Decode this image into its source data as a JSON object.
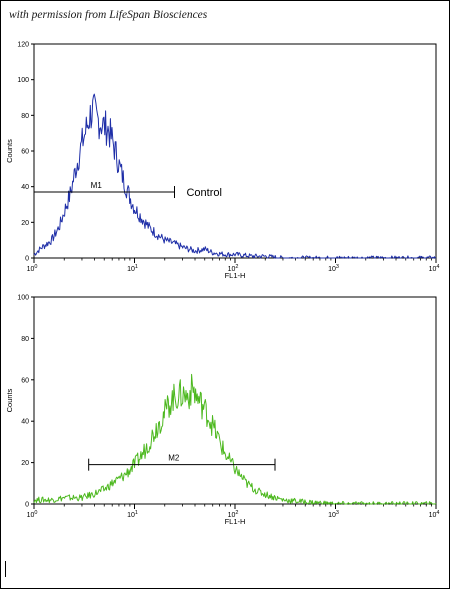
{
  "credit": "with permission from LifeSpan Biosciences",
  "colors": {
    "control": "#1f2fa8",
    "sample": "#4cb81e"
  },
  "chart_data": [
    {
      "type": "line",
      "title": "",
      "xlabel": "FL1-H",
      "ylabel": "Counts",
      "xscale": "log",
      "xlim": [
        1,
        10000
      ],
      "ylim": [
        0,
        120
      ],
      "x_ticks": [
        {
          "base": "10",
          "exp": "0"
        },
        {
          "base": "10",
          "exp": "1"
        },
        {
          "base": "10",
          "exp": "2"
        },
        {
          "base": "10",
          "exp": "3"
        },
        {
          "base": "10",
          "exp": "4"
        }
      ],
      "y_ticks": [
        "0",
        "20",
        "40",
        "60",
        "80",
        "100",
        "120"
      ],
      "grid": false,
      "annotation": "Control",
      "marker": {
        "label": "M1",
        "from": 1,
        "to": 25,
        "y": 37
      },
      "series": [
        {
          "color": "#1f2fa8",
          "points": [
            [
              1.0,
              2
            ],
            [
              1.2,
              6
            ],
            [
              1.5,
              10
            ],
            [
              1.8,
              18
            ],
            [
              2.0,
              26
            ],
            [
              2.3,
              36
            ],
            [
              2.6,
              50
            ],
            [
              3.0,
              64
            ],
            [
              3.3,
              72
            ],
            [
              3.6,
              80
            ],
            [
              3.9,
              83
            ],
            [
              4.2,
              78
            ],
            [
              4.6,
              76
            ],
            [
              5.0,
              74
            ],
            [
              5.5,
              72
            ],
            [
              6.0,
              66
            ],
            [
              6.6,
              58
            ],
            [
              7.2,
              50
            ],
            [
              8.0,
              42
            ],
            [
              9.0,
              34
            ],
            [
              10,
              28
            ],
            [
              12,
              22
            ],
            [
              14,
              17
            ],
            [
              17,
              13
            ],
            [
              20,
              10
            ],
            [
              25,
              8
            ],
            [
              30,
              6
            ],
            [
              40,
              4
            ],
            [
              50,
              5
            ],
            [
              60,
              3
            ],
            [
              80,
              2
            ],
            [
              100,
              2
            ],
            [
              150,
              1
            ],
            [
              200,
              1
            ],
            [
              300,
              0
            ],
            [
              500,
              0
            ],
            [
              1000,
              0
            ],
            [
              3000,
              0
            ],
            [
              10000,
              0
            ]
          ]
        }
      ]
    },
    {
      "type": "line",
      "title": "",
      "xlabel": "FL1-H",
      "ylabel": "Counts",
      "xscale": "log",
      "xlim": [
        1,
        10000
      ],
      "ylim": [
        0,
        100
      ],
      "x_ticks": [
        {
          "base": "10",
          "exp": "0"
        },
        {
          "base": "10",
          "exp": "1"
        },
        {
          "base": "10",
          "exp": "2"
        },
        {
          "base": "10",
          "exp": "3"
        },
        {
          "base": "10",
          "exp": "4"
        }
      ],
      "y_ticks": [
        "0",
        "20",
        "40",
        "60",
        "80",
        "100"
      ],
      "grid": false,
      "marker": {
        "label": "M2",
        "from": 3.5,
        "to": 250,
        "y": 19
      },
      "series": [
        {
          "color": "#4cb81e",
          "points": [
            [
              1.0,
              2
            ],
            [
              1.5,
              2
            ],
            [
              2.0,
              3
            ],
            [
              3.0,
              3
            ],
            [
              4.0,
              5
            ],
            [
              5.0,
              7
            ],
            [
              6.0,
              10
            ],
            [
              7.0,
              12
            ],
            [
              8.0,
              14
            ],
            [
              10,
              19
            ],
            [
              12,
              24
            ],
            [
              14,
              30
            ],
            [
              17,
              38
            ],
            [
              20,
              44
            ],
            [
              23,
              50
            ],
            [
              26,
              52
            ],
            [
              30,
              53
            ],
            [
              34,
              52
            ],
            [
              38,
              56
            ],
            [
              42,
              51
            ],
            [
              47,
              48
            ],
            [
              55,
              42
            ],
            [
              65,
              34
            ],
            [
              80,
              24
            ],
            [
              100,
              17
            ],
            [
              130,
              10
            ],
            [
              170,
              6
            ],
            [
              220,
              4
            ],
            [
              300,
              2
            ],
            [
              500,
              1
            ],
            [
              1000,
              0
            ],
            [
              3000,
              0
            ],
            [
              10000,
              0
            ]
          ]
        }
      ]
    }
  ]
}
